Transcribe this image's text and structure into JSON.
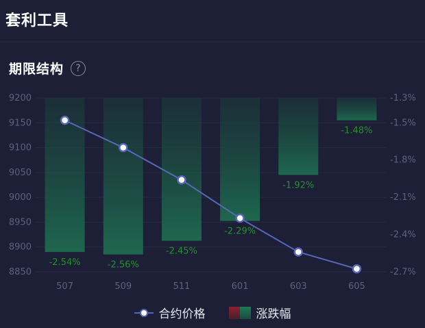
{
  "header": {
    "title": "套利工具"
  },
  "section": {
    "title": "期限结构",
    "help_icon": "question-circle-icon",
    "help_glyph": "?"
  },
  "legend": {
    "price_label": "合约价格",
    "change_label": "涨跌幅"
  },
  "colors": {
    "background": "#1c1f36",
    "line": "#5767b8",
    "bar_top": "#1a3c3a",
    "bar_bottom": "#1e6b4f",
    "bar_label": "#23922e",
    "axis_text": "#5d6180"
  },
  "chart_data": {
    "type": "bar",
    "categories": [
      "507",
      "509",
      "511",
      "601",
      "603",
      "605"
    ],
    "series": [
      {
        "name": "合约价格",
        "type": "line",
        "axis": "left",
        "values": [
          9155,
          9100,
          9035,
          8958,
          8890,
          8856
        ]
      },
      {
        "name": "涨跌幅",
        "type": "bar",
        "axis": "right",
        "values": [
          -2.54,
          -2.56,
          -2.45,
          -2.29,
          -1.92,
          -1.48
        ],
        "labels": [
          "-2.54%",
          "-2.56%",
          "-2.45%",
          "-2.29%",
          "-1.92%",
          "-1.48%"
        ]
      }
    ],
    "y_left": {
      "ticks": [
        "9200",
        "9150",
        "9100",
        "9050",
        "9000",
        "8950",
        "8900",
        "8850"
      ],
      "ylim": [
        8850,
        9200
      ]
    },
    "y_right": {
      "ticks": [
        "-1.3%",
        "-1.5%",
        "-1.8%",
        "-2.1%",
        "-2.4%",
        "-2.7%"
      ],
      "tick_values": [
        -1.3,
        -1.5,
        -1.8,
        -2.1,
        -2.4,
        -2.7
      ],
      "ylim": [
        -2.7,
        -1.3
      ]
    },
    "grid": true,
    "legend_position": "bottom"
  }
}
